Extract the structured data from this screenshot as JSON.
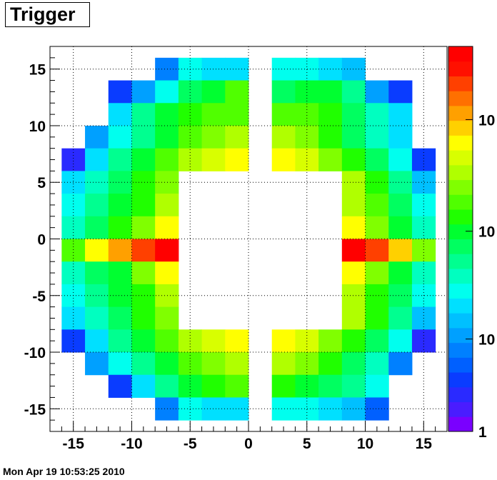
{
  "title": "Trigger",
  "timestamp": "Mon Apr 19 10:53:25 2010",
  "chart_data": {
    "type": "heatmap",
    "title": "Trigger",
    "xlabel": "",
    "ylabel": "",
    "xlim": [
      -17,
      17
    ],
    "ylim": [
      -17,
      17
    ],
    "x_ticks": [
      "-15",
      "-10",
      "-5",
      "0",
      "5",
      "10",
      "15"
    ],
    "y_ticks": [
      "15",
      "10",
      "5",
      "0",
      "-5",
      "-10",
      "-15"
    ],
    "x_tick_values": [
      -15,
      -10,
      -5,
      0,
      5,
      10,
      15
    ],
    "y_tick_values": [
      15,
      10,
      5,
      0,
      -5,
      -10,
      -15
    ],
    "grid": true,
    "colorbar": {
      "scale": "log",
      "labels": [
        "1",
        "10",
        "10",
        "10"
      ],
      "label_levels": [
        0.0,
        0.24,
        0.52,
        0.81
      ],
      "palette": [
        "#7a00ff",
        "#4a1cff",
        "#2a2aff",
        "#0a3cff",
        "#0060ff",
        "#0080ff",
        "#00a0ff",
        "#00c0ff",
        "#00e0ff",
        "#00ffee",
        "#00ffc0",
        "#00ff90",
        "#00ff60",
        "#00ff30",
        "#20ff00",
        "#50ff00",
        "#80ff00",
        "#b0ff00",
        "#d8ff00",
        "#ffff00",
        "#ffd000",
        "#ffa000",
        "#ff7000",
        "#ff4000",
        "#ff1000",
        "#ff0000"
      ]
    },
    "cell_size": [
      2,
      2
    ],
    "x_centers": [
      -15,
      -13,
      -11,
      -9,
      -7,
      -5,
      -3,
      -1,
      1,
      3,
      5,
      7,
      9,
      11,
      13,
      15
    ],
    "y_centers": [
      15,
      13,
      11,
      9,
      7,
      5,
      3,
      1,
      -1,
      -3,
      -5,
      -7,
      -9,
      -11,
      -13,
      -15
    ],
    "value_scale": "0 = lowest color (1), 25 = highest color; null = empty",
    "cells": [
      [
        null,
        null,
        null,
        null,
        5,
        9,
        8,
        8,
        null,
        9,
        9,
        8,
        7,
        null,
        null,
        null
      ],
      [
        null,
        null,
        3,
        6,
        9,
        12,
        13,
        15,
        null,
        12,
        13,
        13,
        11,
        6,
        3,
        null
      ],
      [
        null,
        null,
        8,
        11,
        13,
        14,
        15,
        15,
        null,
        15,
        15,
        14,
        12,
        10,
        8,
        null
      ],
      [
        null,
        6,
        9,
        11,
        13,
        15,
        16,
        17,
        null,
        17,
        16,
        14,
        12,
        10,
        8,
        null
      ],
      [
        2,
        8,
        11,
        13,
        15,
        17,
        18,
        19,
        null,
        19,
        18,
        16,
        14,
        12,
        9,
        3
      ],
      [
        8,
        10,
        12,
        14,
        16,
        null,
        null,
        null,
        null,
        null,
        null,
        null,
        17,
        14,
        11,
        7
      ],
      [
        9,
        11,
        13,
        14,
        17,
        null,
        null,
        null,
        null,
        null,
        null,
        null,
        17,
        15,
        12,
        9
      ],
      [
        10,
        12,
        14,
        16,
        19,
        null,
        null,
        null,
        null,
        null,
        null,
        null,
        19,
        16,
        13,
        10
      ],
      [
        15,
        19,
        21,
        23,
        25,
        null,
        null,
        null,
        null,
        null,
        null,
        null,
        25,
        23,
        20,
        16
      ],
      [
        10,
        12,
        13,
        16,
        19,
        null,
        null,
        null,
        null,
        null,
        null,
        null,
        19,
        16,
        13,
        10
      ],
      [
        9,
        11,
        13,
        14,
        17,
        null,
        null,
        null,
        null,
        null,
        null,
        null,
        17,
        14,
        12,
        9
      ],
      [
        8,
        10,
        12,
        14,
        16,
        null,
        null,
        null,
        null,
        null,
        null,
        null,
        17,
        14,
        11,
        7
      ],
      [
        3,
        8,
        11,
        13,
        15,
        17,
        18,
        19,
        null,
        19,
        18,
        16,
        14,
        12,
        9,
        2
      ],
      [
        null,
        6,
        9,
        11,
        13,
        15,
        16,
        17,
        null,
        17,
        16,
        14,
        12,
        10,
        5,
        null
      ],
      [
        null,
        null,
        3,
        8,
        11,
        13,
        14,
        15,
        null,
        14,
        13,
        12,
        11,
        9,
        null,
        null
      ],
      [
        null,
        null,
        null,
        null,
        5,
        9,
        8,
        8,
        null,
        9,
        9,
        8,
        7,
        4,
        null,
        null
      ]
    ]
  }
}
